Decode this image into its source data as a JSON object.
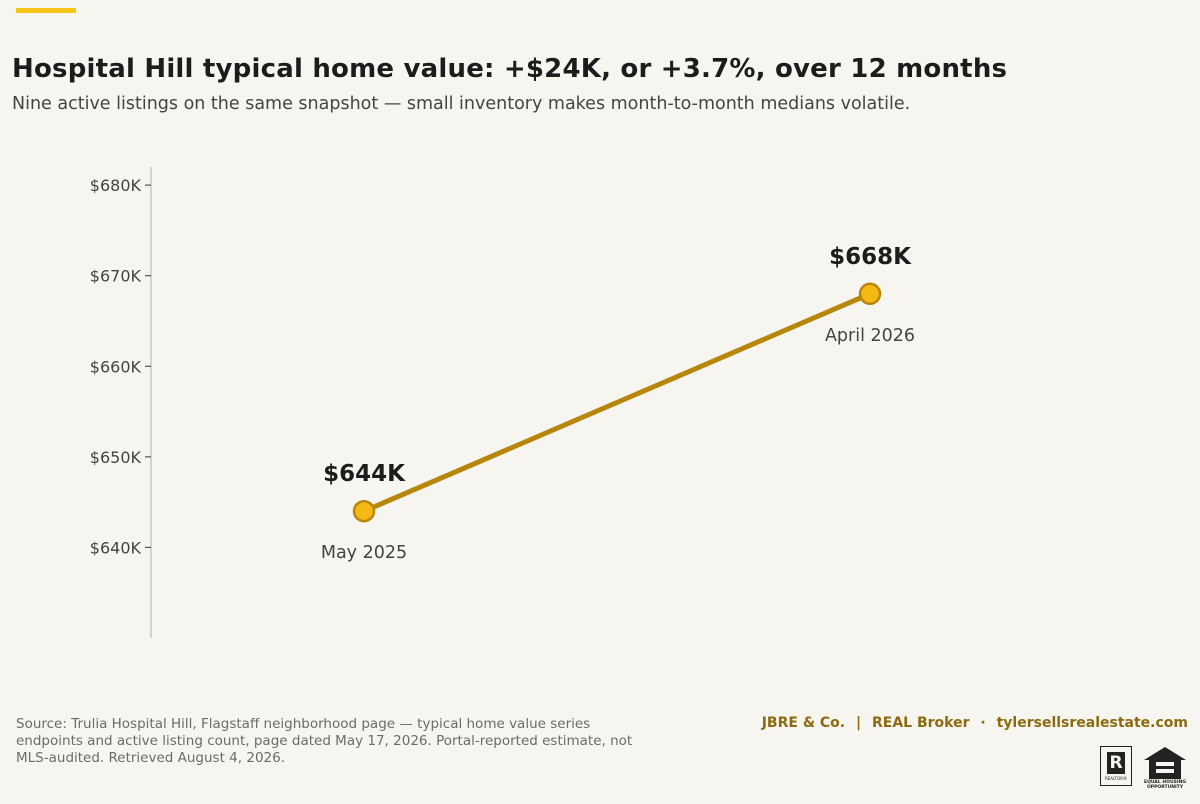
{
  "colors": {
    "accent": "#f5c518",
    "line": "#b8860b",
    "marker_fill": "#f5b914",
    "marker_stroke": "#b8860b",
    "brand": "#8b6a10",
    "axis": "#c8c8c8"
  },
  "chart_data": {
    "type": "line",
    "title": "Hospital Hill typical home value: +$24K, or +3.7%, over 12 months",
    "subtitle": "Nine active listings on the same snapshot — small inventory makes month-to-month medians volatile.",
    "xlabel": "",
    "ylabel": "",
    "ylim": [
      630000,
      682000
    ],
    "grid": false,
    "y_ticks": [
      {
        "value": 680000,
        "label": "$680K"
      },
      {
        "value": 670000,
        "label": "$670K"
      },
      {
        "value": 660000,
        "label": "$660K"
      },
      {
        "value": 650000,
        "label": "$650K"
      },
      {
        "value": 640000,
        "label": "$640K"
      }
    ],
    "series": [
      {
        "points": [
          {
            "x": "May 2025",
            "y": 644000,
            "label": "$644K"
          },
          {
            "x": "April 2026",
            "y": 668000,
            "label": "$668K"
          }
        ]
      }
    ]
  },
  "footer": {
    "source": "Source: Trulia Hospital Hill, Flagstaff neighborhood page — typical home value series endpoints and active listing count, page dated May 17, 2026. Portal-reported estimate, not MLS-audited. Retrieved August 4, 2026.",
    "brand_name": "JBRE & Co.",
    "brand_sep1": "|",
    "brand_broker": "REAL Broker",
    "brand_sep2": "·",
    "brand_site": "tylersellsrealestate.com"
  },
  "logos": {
    "realtor_icon": "realtor-logo-icon",
    "realtor_letter": "R",
    "realtor_text": "REALTOR®",
    "eho_icon": "equal-housing-icon",
    "eho_text_1": "EQUAL HOUSING",
    "eho_text_2": "OPPORTUNITY"
  }
}
